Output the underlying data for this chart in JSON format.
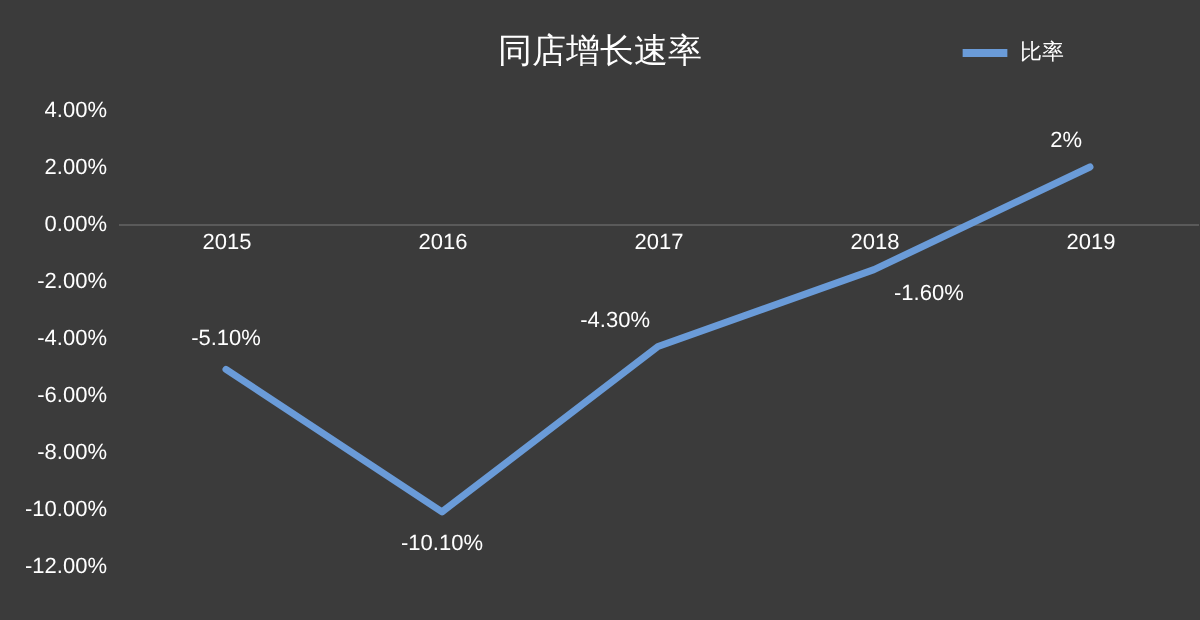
{
  "chart_data": {
    "type": "line",
    "title": "同店增长速率",
    "categories": [
      "2015",
      "2016",
      "2017",
      "2018",
      "2019"
    ],
    "series": [
      {
        "name": "比率",
        "color": "#6a9bd8",
        "values": [
          -5.1,
          -10.1,
          -4.3,
          -1.6,
          2
        ],
        "value_labels": [
          "-5.10%",
          "-10.10%",
          "-4.30%",
          "-1.60%",
          "2%"
        ]
      }
    ],
    "ylim": [
      -12,
      4
    ],
    "yticks": [
      {
        "value": -12,
        "label": "-12.00%"
      },
      {
        "value": -10,
        "label": "-10.00%"
      },
      {
        "value": -8,
        "label": "-8.00%"
      },
      {
        "value": -6,
        "label": "-6.00%"
      },
      {
        "value": -4,
        "label": "-4.00%"
      },
      {
        "value": -2,
        "label": "-2.00%"
      },
      {
        "value": 0,
        "label": "0.00%"
      },
      {
        "value": 2,
        "label": "2.00%"
      },
      {
        "value": 4,
        "label": "4.00%"
      }
    ],
    "grid": false,
    "legend": "top right",
    "marker": "none",
    "line_style": "solid"
  }
}
